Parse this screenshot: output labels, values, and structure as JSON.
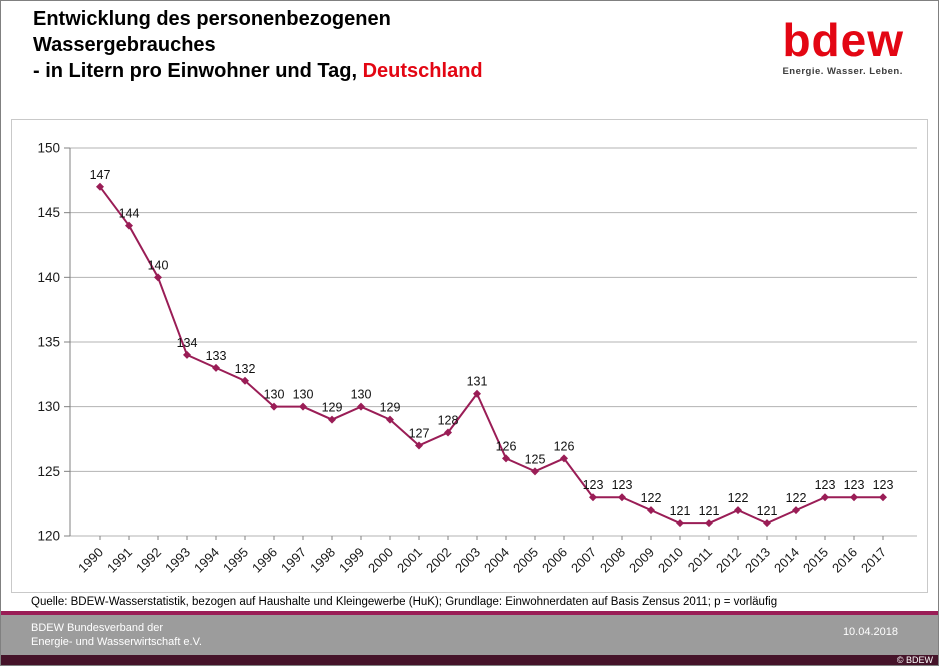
{
  "colors": {
    "brand_red": "#e30613",
    "series_maroon": "#9a1d56",
    "footer_gray": "#9c9c9c",
    "bottom_strip": "#451329",
    "gridline": "#b3b3b3"
  },
  "header": {
    "title_line1": "Entwicklung des personenbezogenen",
    "title_line2": "Wassergebrauches",
    "title_line3_prefix": "- in Litern pro Einwohner und Tag, ",
    "title_line3_highlight": "Deutschland"
  },
  "logo": {
    "text": "bdew",
    "tagline": "Energie. Wasser. Leben."
  },
  "chart_data": {
    "type": "line",
    "title": "Entwicklung des personenbezogenen Wassergebrauches - in Litern pro Einwohner und Tag, Deutschland",
    "x": [
      "1990",
      "1991",
      "1992",
      "1993",
      "1994",
      "1995",
      "1996",
      "1997",
      "1998",
      "1999",
      "2000",
      "2001",
      "2002",
      "2003",
      "2004",
      "2005",
      "2006",
      "2007",
      "2008",
      "2009",
      "2010",
      "2011",
      "2012",
      "2013",
      "2014",
      "2015",
      "2016",
      "2017"
    ],
    "values": [
      147,
      144,
      140,
      134,
      133,
      132,
      130,
      130,
      129,
      130,
      129,
      127,
      128,
      131,
      126,
      125,
      126,
      123,
      123,
      122,
      121,
      121,
      122,
      121,
      122,
      123,
      123,
      123
    ],
    "xlabel": "",
    "ylabel": "",
    "ylim": [
      120,
      150
    ],
    "ytick_step": 5,
    "yticks": [
      120,
      125,
      130,
      135,
      140,
      145,
      150
    ],
    "grid": true,
    "legend_position": "none",
    "line_color": "#9a1d56",
    "marker": "diamond"
  },
  "footer": {
    "source": "Quelle: BDEW-Wasserstatistik, bezogen auf Haushalte und Kleingewerbe (HuK); Grundlage: Einwohnerdaten auf Basis Zensus 2011; p = vorläufig",
    "org_line1": "BDEW Bundesverband der",
    "org_line2": "Energie- und Wasserwirtschaft e.V.",
    "date": "10.04.2018",
    "copyright": "© BDEW"
  }
}
